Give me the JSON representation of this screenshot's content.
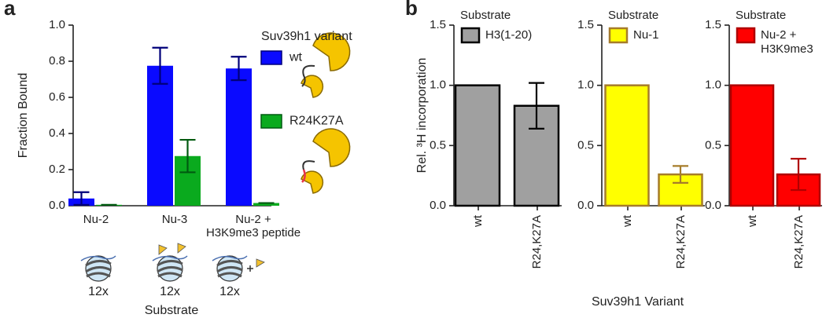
{
  "chart_data": [
    {
      "type": "bar",
      "panel": "a",
      "ylabel": "Fraction Bound",
      "xlabel": "Substrate",
      "legend_title": "Suv39h1 variant",
      "categories": [
        "Nu-2",
        "Nu-3",
        "Nu-2 + H3K9me3 peptide"
      ],
      "series": [
        {
          "name": "wt",
          "color": "#0a0aff",
          "error_color": "#00007a",
          "values": [
            0.04,
            0.775,
            0.76
          ],
          "errors": [
            0.035,
            0.1,
            0.065
          ]
        },
        {
          "name": "R24K27A",
          "color": "#0aaa1e",
          "error_color": "#005a10",
          "values": [
            0.005,
            0.275,
            0.015
          ],
          "errors": [
            0,
            0.09,
            0
          ]
        }
      ],
      "ylim": [
        0,
        1
      ],
      "yticks": [
        {
          "value": 0,
          "label": "0.0"
        },
        0.2,
        0.4,
        0.6,
        0.8,
        {
          "value": 1,
          "label": "1.0"
        }
      ],
      "substrate_counts": [
        "12x",
        "12x",
        "12x"
      ]
    },
    {
      "type": "bar",
      "panel": "b",
      "ylabel": "Rel. ³H incorporation",
      "legend_title": "Substrate",
      "categories": [
        "wt",
        "R24,K27A"
      ],
      "series": [
        {
          "name": "H3(1-20)",
          "color": "#a0a0a0",
          "edge_color": "#000000",
          "error_color": "#000000",
          "values": [
            1,
            0.83
          ],
          "errors": [
            0,
            0.19
          ]
        }
      ],
      "ylim": [
        0,
        1.5
      ],
      "yticks": [
        {
          "value": 0,
          "label": "0.0"
        },
        0.5,
        {
          "value": 1,
          "label": "1.0"
        },
        {
          "value": 1.5,
          "label": "1.5"
        }
      ]
    },
    {
      "type": "bar",
      "xlabel": "Suv39h1 Variant",
      "legend_title": "Substrate",
      "categories": [
        "wt",
        "R24,K27A"
      ],
      "series": [
        {
          "name": "Nu-1",
          "color": "#ffff00",
          "edge_color": "#a67c2a",
          "error_color": "#a67c2a",
          "values": [
            1,
            0.26
          ],
          "errors": [
            0,
            0.07
          ]
        }
      ],
      "ylim": [
        0,
        1.5
      ],
      "yticks": [
        {
          "value": 0,
          "label": "0.0"
        },
        0.5,
        {
          "value": 1,
          "label": "1.0"
        },
        {
          "value": 1.5,
          "label": "1.5"
        }
      ]
    },
    {
      "type": "bar",
      "legend_title": "Substrate",
      "categories": [
        "wt",
        "R24,K27A"
      ],
      "series": [
        {
          "name": "Nu-2 + H3K9me3",
          "color": "#ff0000",
          "edge_color": "#b00000",
          "error_color": "#b00000",
          "values": [
            1,
            0.26
          ],
          "errors": [
            0,
            0.13
          ]
        }
      ],
      "ylim": [
        0,
        1.5
      ],
      "yticks": [
        {
          "value": 0,
          "label": "0.0"
        },
        0.5,
        {
          "value": 1,
          "label": "1.0"
        },
        {
          "value": 1.5,
          "label": "1.5"
        }
      ]
    }
  ]
}
